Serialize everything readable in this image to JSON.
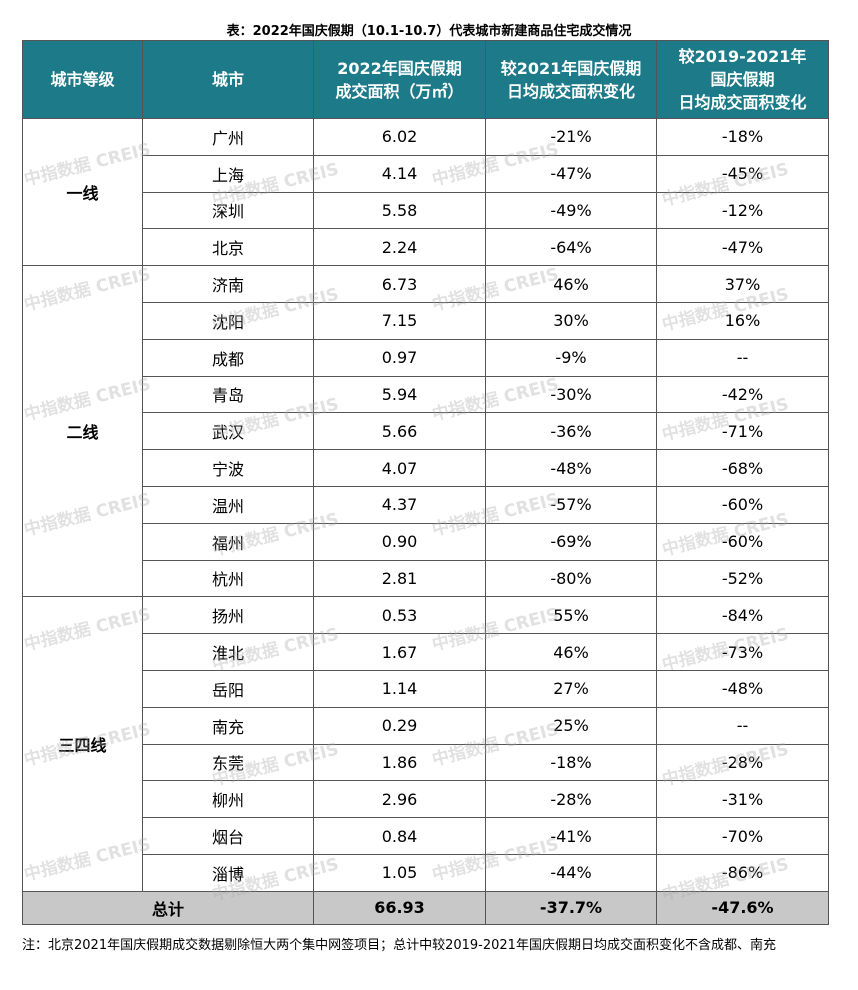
{
  "header": {
    "title": "表：2022年国庆假期（10.1-10.7）代表城市新建商品住宅成交情况"
  },
  "table": {
    "columns": [
      [
        "城市等级"
      ],
      [
        "城市"
      ],
      [
        "2022年国庆假期",
        "成交面积（万㎡）"
      ],
      [
        "较2021年国庆假期",
        "日均成交面积变化"
      ],
      [
        "较2019-2021年",
        "国庆假期",
        "日均成交面积变化"
      ]
    ],
    "groups": [
      {
        "tier": "一线",
        "rows": [
          [
            "广州",
            "6.02",
            "-21%",
            "-18%"
          ],
          [
            "上海",
            "4.14",
            "-47%",
            "-45%"
          ],
          [
            "深圳",
            "5.58",
            "-49%",
            "-12%"
          ],
          [
            "北京",
            "2.24",
            "-64%",
            "-47%"
          ]
        ]
      },
      {
        "tier": "二线",
        "rows": [
          [
            "济南",
            "6.73",
            "46%",
            "37%"
          ],
          [
            "沈阳",
            "7.15",
            "30%",
            "16%"
          ],
          [
            "成都",
            "0.97",
            "-9%",
            "--"
          ],
          [
            "青岛",
            "5.94",
            "-30%",
            "-42%"
          ],
          [
            "武汉",
            "5.66",
            "-36%",
            "-71%"
          ],
          [
            "宁波",
            "4.07",
            "-48%",
            "-68%"
          ],
          [
            "温州",
            "4.37",
            "-57%",
            "-60%"
          ],
          [
            "福州",
            "0.90",
            "-69%",
            "-60%"
          ],
          [
            "杭州",
            "2.81",
            "-80%",
            "-52%"
          ]
        ]
      },
      {
        "tier": "三四线",
        "rows": [
          [
            "扬州",
            "0.53",
            "55%",
            "-84%"
          ],
          [
            "淮北",
            "1.67",
            "46%",
            "-73%"
          ],
          [
            "岳阳",
            "1.14",
            "27%",
            "-48%"
          ],
          [
            "南充",
            "0.29",
            "25%",
            "--"
          ],
          [
            "东莞",
            "1.86",
            "-18%",
            "-28%"
          ],
          [
            "柳州",
            "2.96",
            "-28%",
            "-31%"
          ],
          [
            "烟台",
            "0.84",
            "-41%",
            "-70%"
          ],
          [
            "淄博",
            "1.05",
            "-44%",
            "-86%"
          ]
        ]
      }
    ],
    "total": [
      "总计",
      "66.93",
      "-37.7%",
      "-47.6%"
    ]
  },
  "note": "注：北京2021年国庆假期成交数据剔除恒大两个集中网签项目；总计中较2019-2021年国庆假期日均成交面积变化不含成都、南充",
  "watermark": "中指数据 CREIS"
}
